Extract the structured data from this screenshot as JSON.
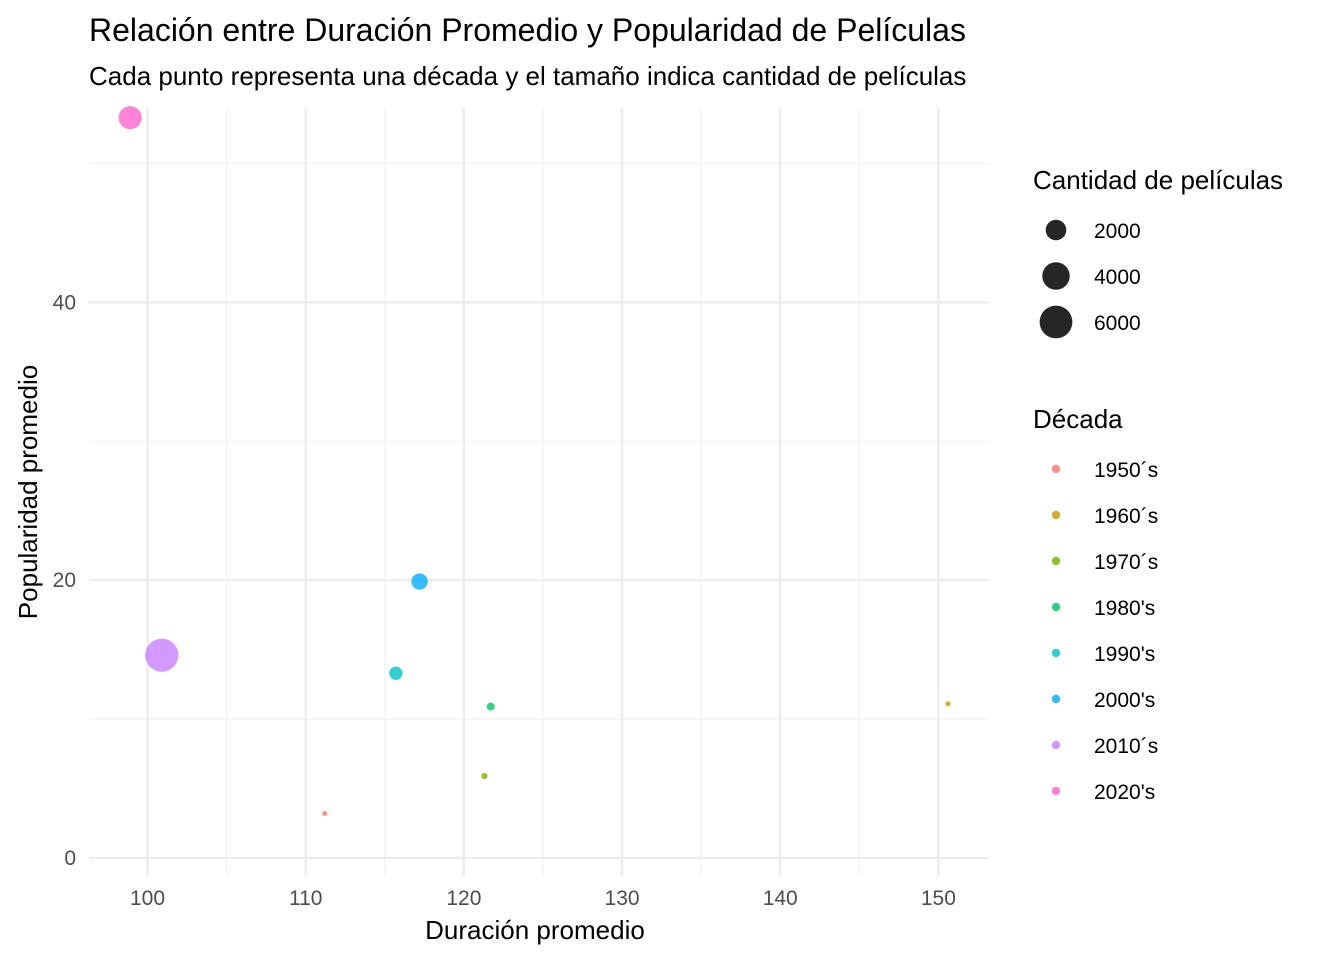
{
  "chart_data": {
    "type": "scatter",
    "title": "Relación entre Duración Promedio y Popularidad de Películas",
    "subtitle": "Cada punto representa una década y el tamaño indica cantidad de películas",
    "xlabel": "Duración promedio",
    "ylabel": "Popularidad promedio",
    "xlim": [
      96.3,
      153.2
    ],
    "ylim": [
      -1.3,
      54.0
    ],
    "x_ticks": [
      100,
      110,
      120,
      130,
      140,
      150
    ],
    "x_tick_labels": [
      "100",
      "110",
      "120",
      "130",
      "140",
      "150"
    ],
    "x_minor_ticks": [
      105,
      115,
      125,
      135,
      145
    ],
    "y_ticks": [
      0,
      20,
      40
    ],
    "y_tick_labels": [
      "0",
      "20",
      "40"
    ],
    "y_minor_ticks": [
      10,
      30,
      50
    ],
    "grid": true,
    "legend_position": "right",
    "size_legend": {
      "title": "Cantidad de películas",
      "values": [
        2000,
        4000,
        6000
      ],
      "labels": [
        "2000",
        "4000",
        "6000"
      ],
      "color": "#262626"
    },
    "color_legend": {
      "title": "Década"
    },
    "series": [
      {
        "name": "1950´s",
        "color": "#F8766D",
        "x": 111.2,
        "y": 3.2,
        "count": 120
      },
      {
        "name": "1960´s",
        "color": "#CD9600",
        "x": 150.6,
        "y": 11.1,
        "count": 150
      },
      {
        "name": "1970´s",
        "color": "#7CAE00",
        "x": 121.3,
        "y": 5.9,
        "count": 220
      },
      {
        "name": "1980's",
        "color": "#00BE67",
        "x": 121.7,
        "y": 10.9,
        "count": 360
      },
      {
        "name": "1990's",
        "color": "#00BFC4",
        "x": 115.7,
        "y": 13.3,
        "count": 1000
      },
      {
        "name": "2000's",
        "color": "#00A9FF",
        "x": 117.2,
        "y": 19.9,
        "count": 1500
      },
      {
        "name": "2010´s",
        "color": "#C77CFF",
        "x": 100.9,
        "y": 14.6,
        "count": 6200
      },
      {
        "name": "2020's",
        "color": "#FF61CC",
        "x": 98.9,
        "y": 53.3,
        "count": 3000
      }
    ]
  }
}
